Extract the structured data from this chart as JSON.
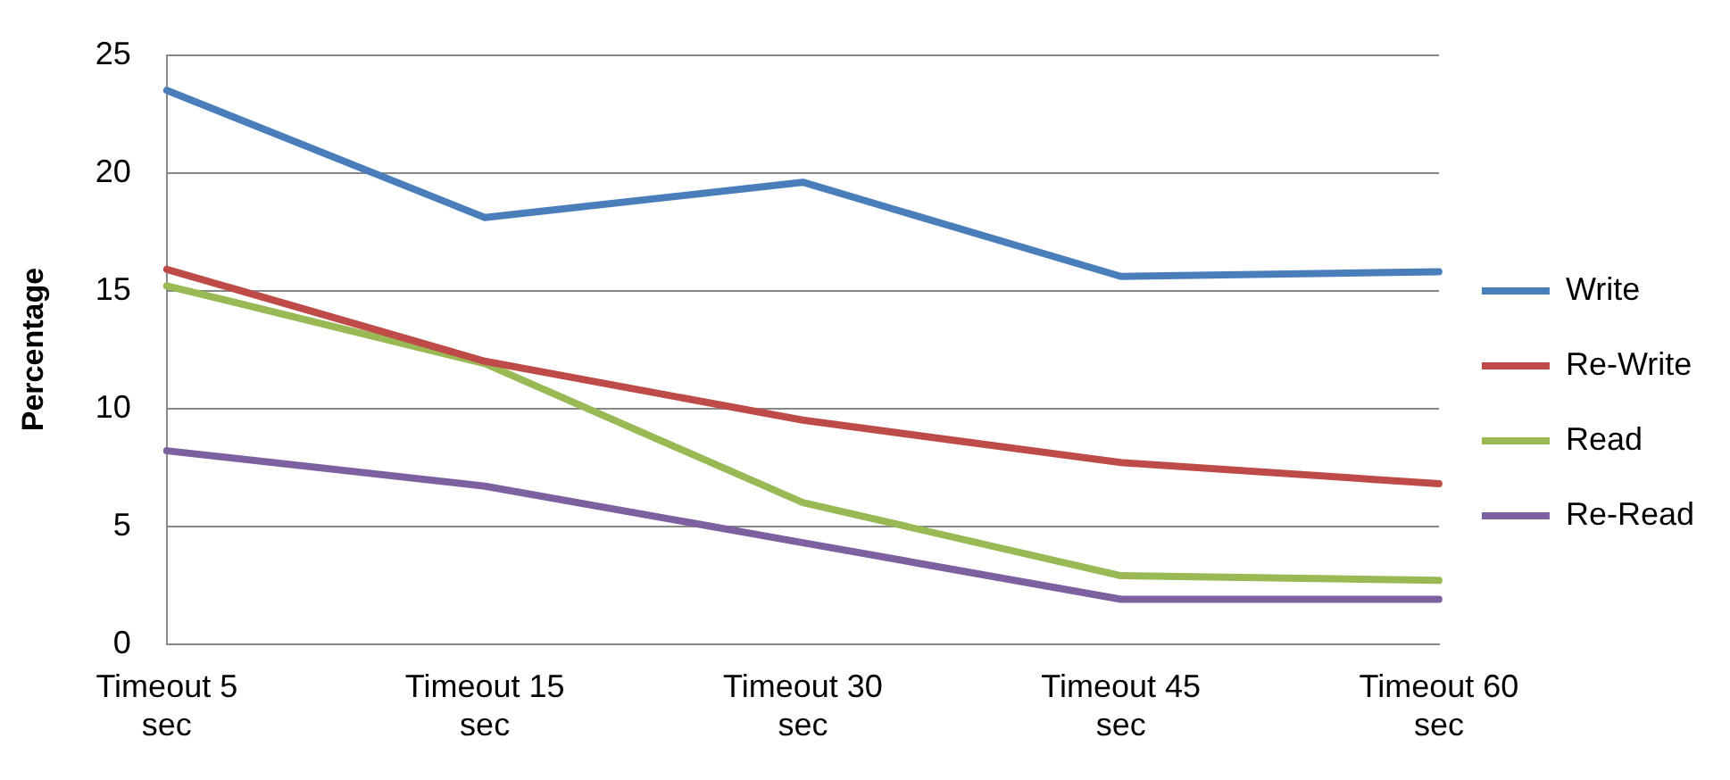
{
  "chart_data": {
    "type": "line",
    "ylabel": "Percentage",
    "categories": [
      "Timeout 5 sec",
      "Timeout 15 sec",
      "Timeout 30 sec",
      "Timeout 45 sec",
      "Timeout 60 sec"
    ],
    "series": [
      {
        "name": "Write",
        "color": "#4a7ebb",
        "values": [
          23.5,
          18.1,
          19.6,
          15.6,
          15.8
        ]
      },
      {
        "name": "Re-Write",
        "color": "#be4b48",
        "values": [
          15.9,
          12.0,
          9.5,
          7.7,
          6.8
        ]
      },
      {
        "name": "Read",
        "color": "#98b954",
        "values": [
          15.2,
          11.9,
          6.0,
          2.9,
          2.7
        ]
      },
      {
        "name": "Re-Read",
        "color": "#7d60a0",
        "values": [
          8.2,
          6.7,
          4.3,
          1.9,
          1.9
        ]
      }
    ],
    "ylim": [
      0,
      25
    ],
    "yticks": [
      0,
      5,
      10,
      15,
      20,
      25
    ],
    "grid": "y",
    "legend": "right",
    "marker": "none",
    "line_style": "solid"
  }
}
